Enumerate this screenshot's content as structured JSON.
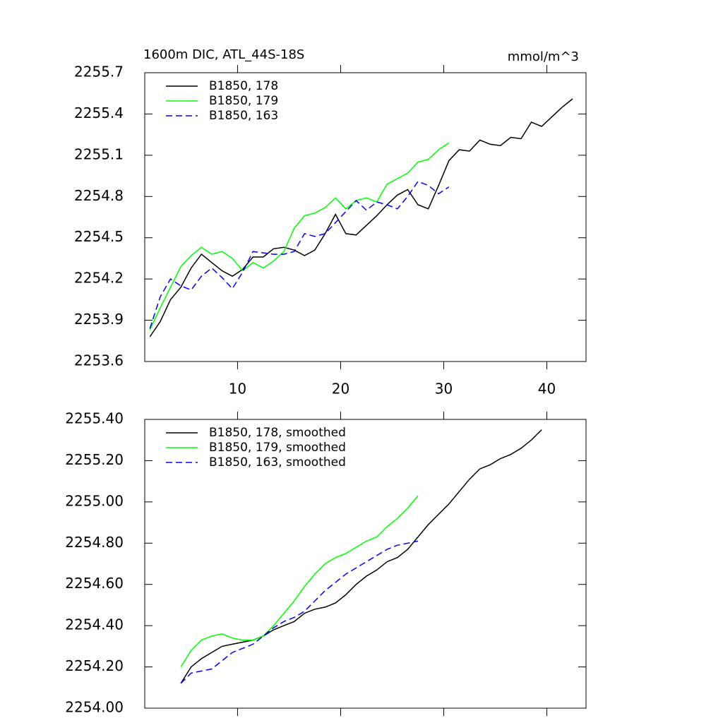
{
  "chart_data": [
    {
      "type": "line",
      "title": "1600m DIC, ATL_44S-18S",
      "units": "mmol/m^3",
      "x": [
        1.5,
        2.5,
        3.5,
        4.5,
        5.5,
        6.5,
        7.5,
        8.5,
        9.5,
        10.5,
        11.5,
        12.5,
        13.5,
        14.5,
        15.5,
        16.5,
        17.5,
        18.5,
        19.5,
        20.5,
        21.5,
        22.5,
        23.5,
        24.5,
        25.5,
        26.5,
        27.5,
        28.5,
        29.5,
        30.5,
        31.5,
        32.5,
        33.5,
        34.5,
        35.5,
        36.5,
        37.5,
        38.5,
        39.5,
        40.5,
        41.5,
        42.5
      ],
      "series": [
        {
          "name": "B1850, 178",
          "color": "#000000",
          "dash": false,
          "values": [
            2253.78,
            2253.89,
            2254.05,
            2254.14,
            2254.28,
            2254.38,
            2254.32,
            2254.26,
            2254.22,
            2254.27,
            2254.36,
            2254.36,
            2254.42,
            2254.43,
            2254.41,
            2254.37,
            2254.41,
            2254.53,
            2254.67,
            2254.53,
            2254.52,
            2254.59,
            2254.66,
            2254.74,
            2254.81,
            2254.85,
            2254.74,
            2254.71,
            2254.88,
            2255.06,
            2255.14,
            2255.13,
            2255.21,
            2255.18,
            2255.17,
            2255.23,
            2255.22,
            2255.34,
            2255.31,
            2255.38,
            2255.45,
            2255.51
          ]
        },
        {
          "name": "B1850, 179",
          "color": "#00ff00",
          "dash": false,
          "values": [
            2253.83,
            2253.99,
            2254.14,
            2254.29,
            2254.37,
            2254.43,
            2254.38,
            2254.4,
            2254.35,
            2254.26,
            2254.32,
            2254.28,
            2254.33,
            2254.4,
            2254.57,
            2254.66,
            2254.68,
            2254.72,
            2254.79,
            2254.71,
            2254.77,
            2254.79,
            2254.76,
            2254.89,
            2254.93,
            2254.97,
            2255.05,
            2255.07,
            2255.14,
            2255.19,
            null,
            null,
            null,
            null,
            null,
            null,
            null,
            null,
            null,
            null,
            null,
            null
          ]
        },
        {
          "name": "B1850, 163",
          "color": "#0000ff",
          "dash": true,
          "values": [
            2253.84,
            2254.07,
            2254.2,
            2254.15,
            2254.12,
            2254.22,
            2254.28,
            2254.21,
            2254.13,
            2254.25,
            2254.4,
            2254.39,
            2254.38,
            2254.38,
            2254.4,
            2254.53,
            2254.51,
            2254.53,
            2254.61,
            2254.69,
            2254.77,
            2254.7,
            2254.76,
            2254.74,
            2254.71,
            2254.8,
            2254.91,
            2254.88,
            2254.82,
            2254.87,
            null,
            null,
            null,
            null,
            null,
            null,
            null,
            null,
            null,
            null,
            null,
            null
          ]
        }
      ],
      "xlim": [
        1,
        43.8
      ],
      "xticks": [
        10,
        20,
        30,
        40
      ],
      "xtick_labels": true,
      "ylim": [
        2253.6,
        2255.7
      ],
      "yticks": [
        2253.6,
        2253.9,
        2254.2,
        2254.5,
        2254.8,
        2255.1,
        2255.4,
        2255.7
      ],
      "grid": false,
      "legend": "top-left"
    },
    {
      "type": "line",
      "x": [
        4.5,
        5.5,
        6.5,
        7.5,
        8.5,
        9.5,
        10.5,
        11.5,
        12.5,
        13.5,
        14.5,
        15.5,
        16.5,
        17.5,
        18.5,
        19.5,
        20.5,
        21.5,
        22.5,
        23.5,
        24.5,
        25.5,
        26.5,
        27.5,
        28.5,
        29.5,
        30.5,
        31.5,
        32.5,
        33.5,
        34.5,
        35.5,
        36.5,
        37.5,
        38.5,
        39.5
      ],
      "series": [
        {
          "name": "B1850, 178, smoothed",
          "color": "#000000",
          "dash": false,
          "values": [
            2254.12,
            2254.2,
            2254.24,
            2254.27,
            2254.3,
            2254.31,
            2254.32,
            2254.33,
            2254.35,
            2254.38,
            2254.4,
            2254.42,
            2254.46,
            2254.48,
            2254.49,
            2254.51,
            2254.55,
            2254.6,
            2254.64,
            2254.67,
            2254.71,
            2254.73,
            2254.77,
            2254.83,
            2254.89,
            2254.94,
            2254.99,
            2255.05,
            2255.11,
            2255.16,
            2255.18,
            2255.21,
            2255.23,
            2255.26,
            2255.3,
            2255.35
          ]
        },
        {
          "name": "B1850, 179, smoothed",
          "color": "#00ff00",
          "dash": false,
          "values": [
            2254.2,
            2254.28,
            2254.33,
            2254.35,
            2254.36,
            2254.34,
            2254.33,
            2254.33,
            2254.35,
            2254.4,
            2254.46,
            2254.52,
            2254.59,
            2254.65,
            2254.7,
            2254.73,
            2254.75,
            2254.78,
            2254.81,
            2254.83,
            2254.88,
            2254.92,
            2254.97,
            2255.03,
            null,
            null,
            null,
            null,
            null,
            null,
            null,
            null,
            null,
            null,
            null,
            null
          ]
        },
        {
          "name": "B1850, 163, smoothed",
          "color": "#0000ff",
          "dash": true,
          "values": [
            2254.12,
            2254.17,
            2254.18,
            2254.19,
            2254.23,
            2254.27,
            2254.29,
            2254.31,
            2254.35,
            2254.39,
            2254.42,
            2254.44,
            2254.47,
            2254.52,
            2254.57,
            2254.61,
            2254.65,
            2254.68,
            2254.71,
            2254.74,
            2254.77,
            2254.79,
            2254.8,
            2254.81,
            null,
            null,
            null,
            null,
            null,
            null,
            null,
            null,
            null,
            null,
            null,
            null
          ]
        }
      ],
      "xlim": [
        1,
        43.8
      ],
      "xticks": [
        10,
        20,
        30,
        40
      ],
      "xtick_labels": false,
      "ylim": [
        2254.0,
        2255.4
      ],
      "yticks": [
        {
          "value": 2254.0,
          "label": "2254.00"
        },
        {
          "value": 2254.2,
          "label": "2254.20"
        },
        {
          "value": 2254.4,
          "label": "2254.40"
        },
        {
          "value": 2254.6,
          "label": "2254.60"
        },
        {
          "value": 2254.8,
          "label": "2254.80"
        },
        {
          "value": 2255.0,
          "label": "2255.00"
        },
        {
          "value": 2255.2,
          "label": "2255.20"
        },
        {
          "value": 2255.4,
          "label": "2255.40"
        }
      ],
      "grid": false,
      "legend": "top-left"
    }
  ]
}
